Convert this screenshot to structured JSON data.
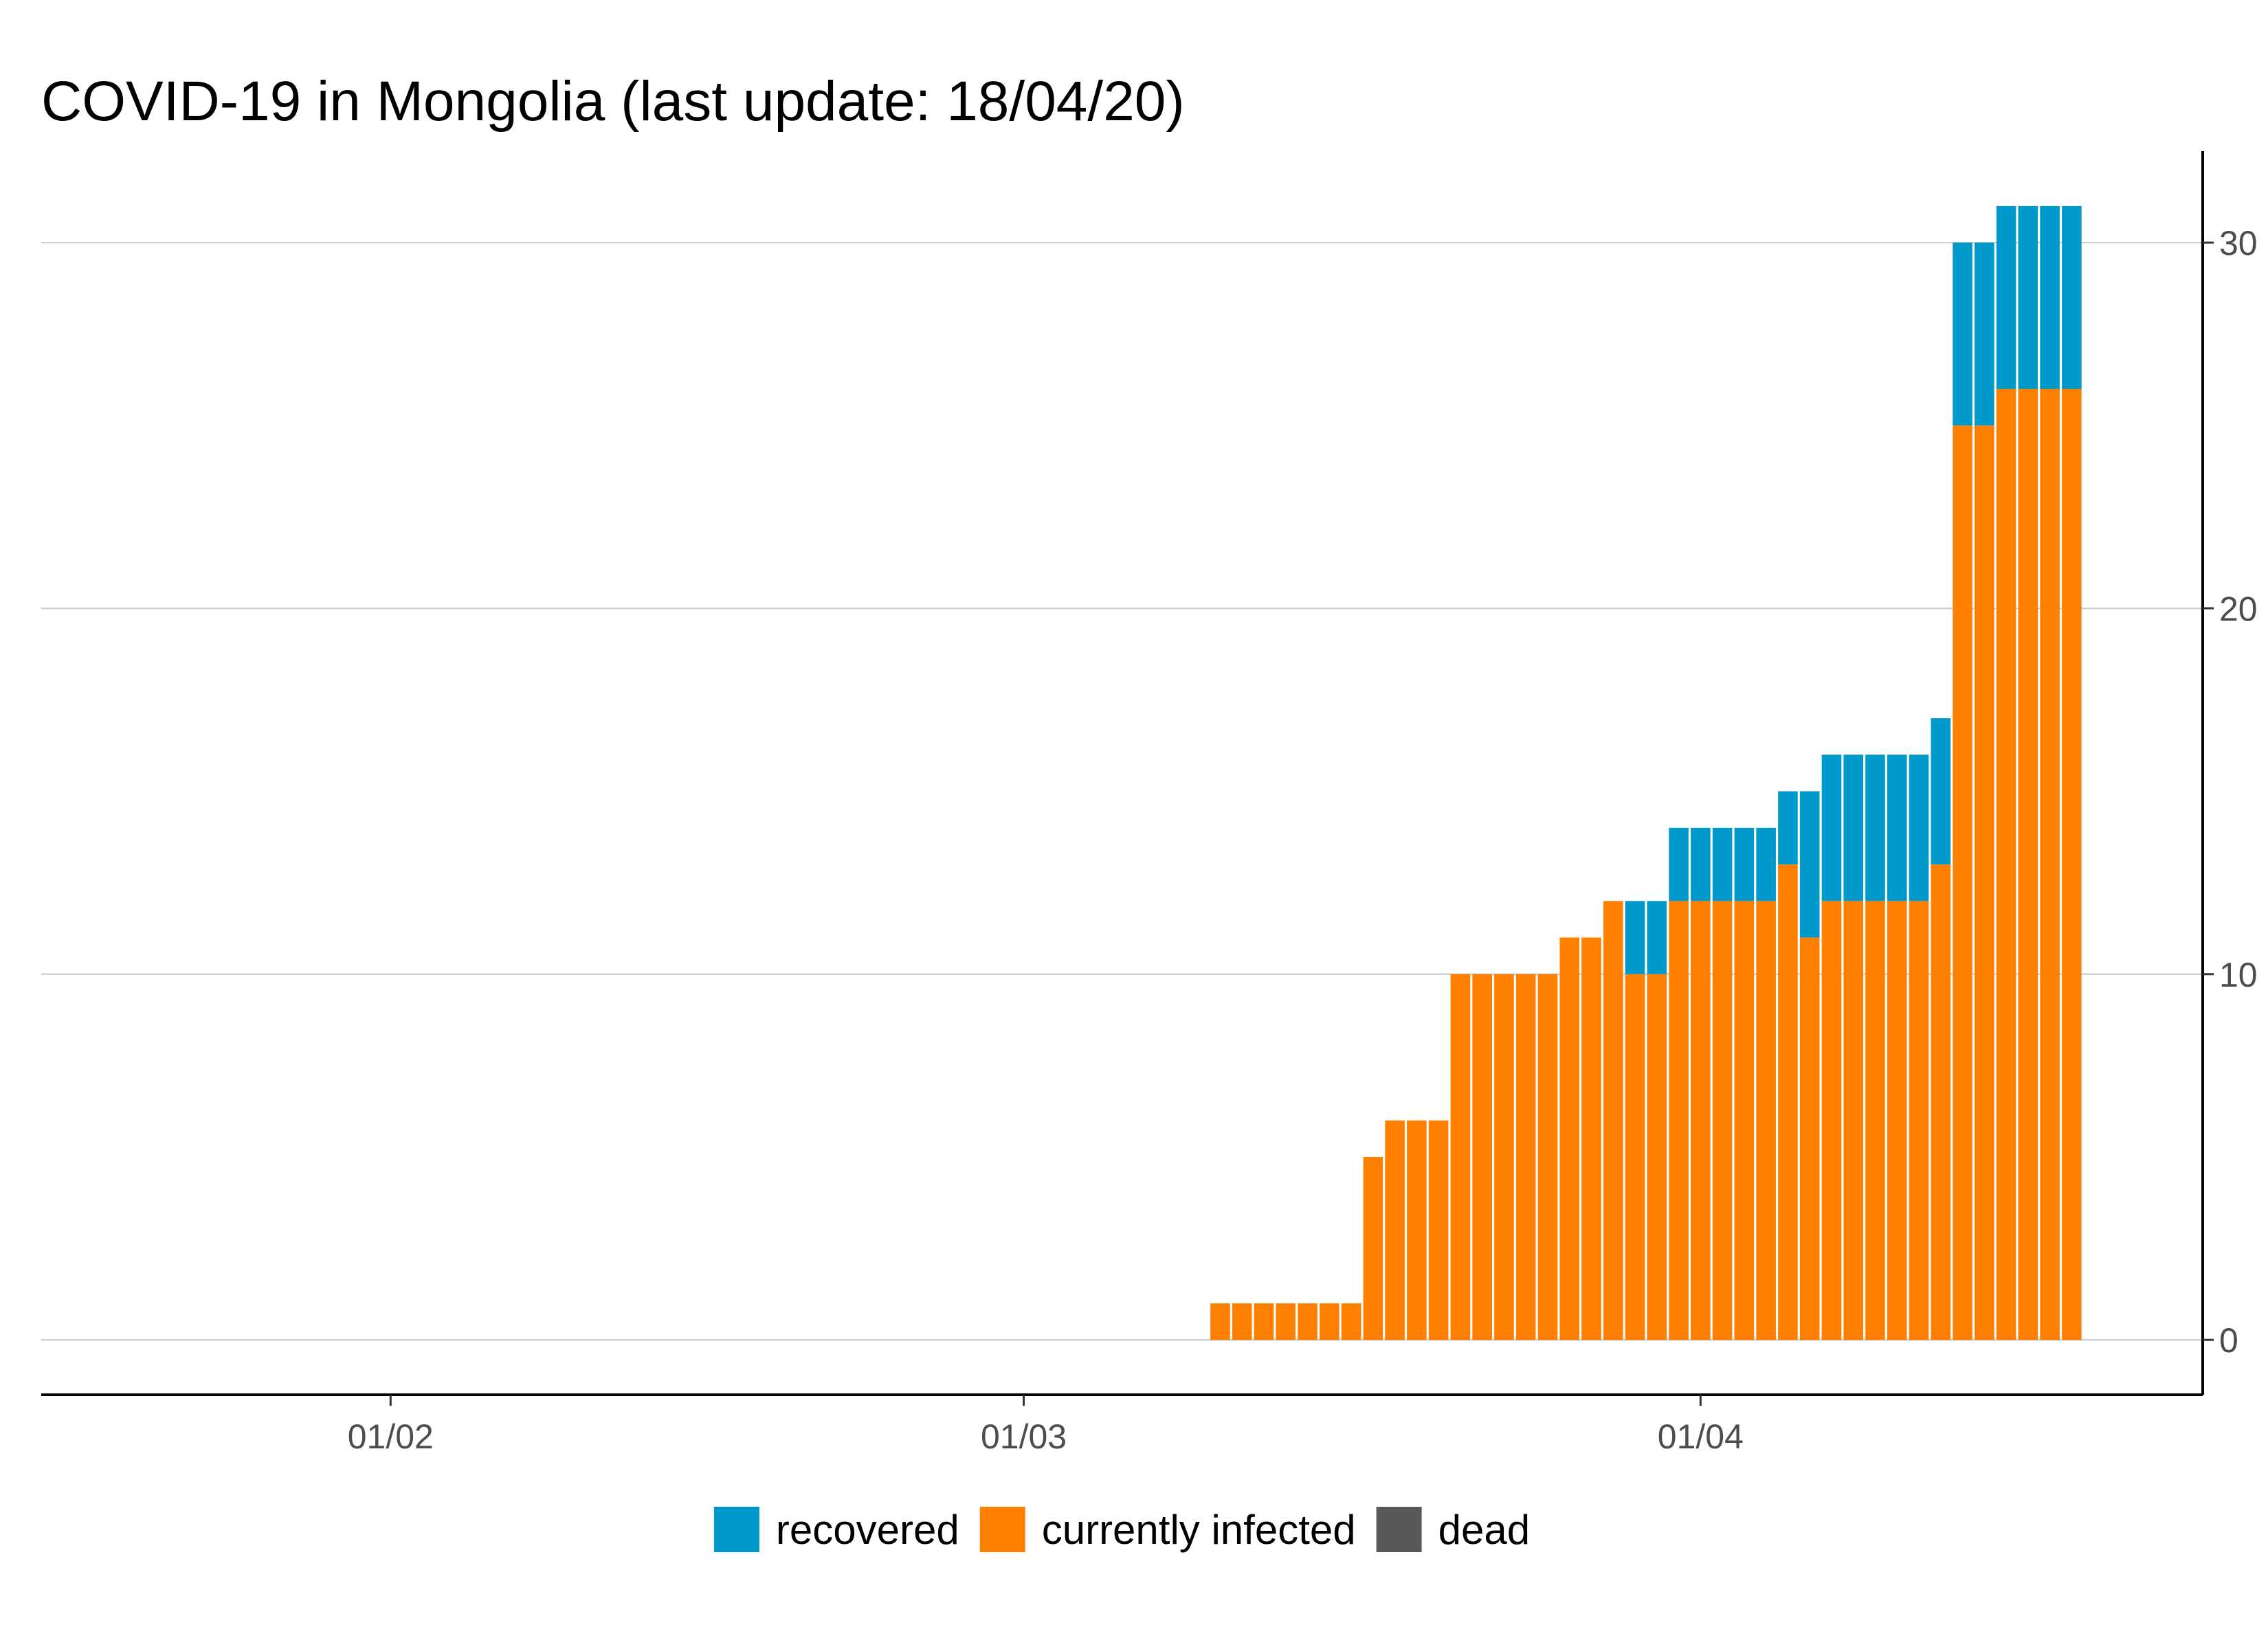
{
  "chart_data": {
    "type": "bar",
    "stacked": true,
    "title": "COVID-19 in Mongolia (last update: 18/04/20)",
    "xlabel": "",
    "ylabel": "",
    "x_ticks": [
      "01/02",
      "01/03",
      "01/04"
    ],
    "y_ticks": [
      0,
      10,
      20,
      30
    ],
    "ylim": [
      -1.5,
      32.5
    ],
    "y_axis_side": "right",
    "grid": "horizontal major",
    "legend_position": "bottom",
    "colors": {
      "recovered": "#0099cc",
      "currently infected": "#ff8000",
      "dead": "#595959"
    },
    "dates": [
      "2020-03-10",
      "2020-03-11",
      "2020-03-12",
      "2020-03-13",
      "2020-03-14",
      "2020-03-15",
      "2020-03-16",
      "2020-03-17",
      "2020-03-18",
      "2020-03-19",
      "2020-03-20",
      "2020-03-21",
      "2020-03-22",
      "2020-03-23",
      "2020-03-24",
      "2020-03-25",
      "2020-03-26",
      "2020-03-27",
      "2020-03-28",
      "2020-03-29",
      "2020-03-30",
      "2020-03-31",
      "2020-04-01",
      "2020-04-02",
      "2020-04-03",
      "2020-04-04",
      "2020-04-05",
      "2020-04-06",
      "2020-04-07",
      "2020-04-08",
      "2020-04-09",
      "2020-04-10",
      "2020-04-11",
      "2020-04-12",
      "2020-04-13",
      "2020-04-14",
      "2020-04-15",
      "2020-04-16",
      "2020-04-17",
      "2020-04-18"
    ],
    "series": [
      {
        "name": "recovered",
        "values": [
          0,
          0,
          0,
          0,
          0,
          0,
          0,
          0,
          0,
          0,
          0,
          0,
          0,
          0,
          0,
          0,
          0,
          0,
          0,
          2,
          2,
          2,
          2,
          2,
          2,
          2,
          2,
          4,
          4,
          4,
          4,
          4,
          4,
          4,
          5,
          5,
          5,
          5,
          5,
          5
        ]
      },
      {
        "name": "currently infected",
        "values": [
          1,
          1,
          1,
          1,
          1,
          1,
          1,
          5,
          6,
          6,
          6,
          10,
          10,
          10,
          10,
          10,
          11,
          11,
          12,
          10,
          10,
          12,
          12,
          12,
          12,
          12,
          13,
          11,
          12,
          12,
          12,
          12,
          12,
          13,
          25,
          25,
          26,
          26,
          26,
          26
        ]
      },
      {
        "name": "dead",
        "values": [
          0,
          0,
          0,
          0,
          0,
          0,
          0,
          0,
          0,
          0,
          0,
          0,
          0,
          0,
          0,
          0,
          0,
          0,
          0,
          0,
          0,
          0,
          0,
          0,
          0,
          0,
          0,
          0,
          0,
          0,
          0,
          0,
          0,
          0,
          0,
          0,
          0,
          0,
          0,
          0
        ]
      }
    ]
  }
}
